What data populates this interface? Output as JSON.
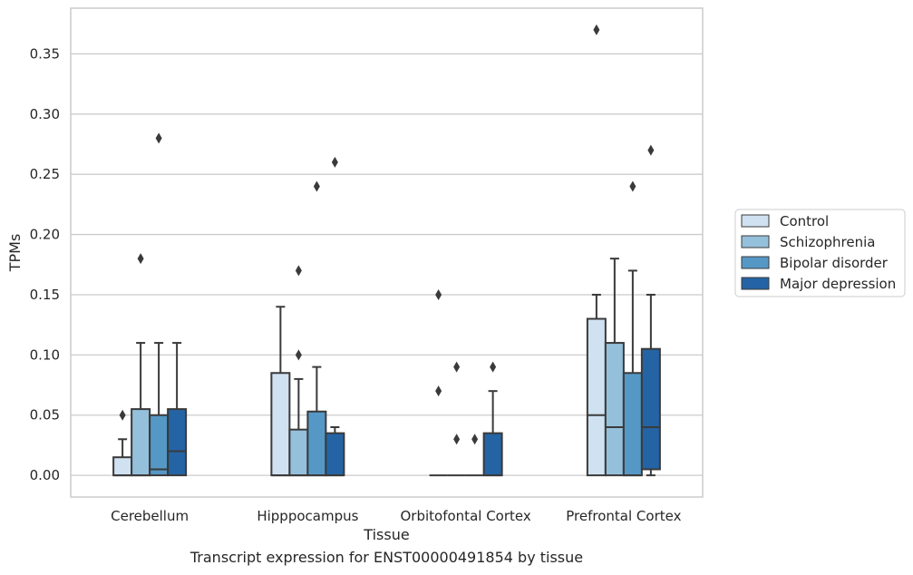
{
  "caption": "Transcript expression for ENST00000491854 by tissue",
  "chart_data": {
    "type": "box",
    "xlabel": "Tissue",
    "ylabel": "TPMs",
    "ylim": [
      -0.018,
      0.388
    ],
    "yticks": [
      0.0,
      0.05,
      0.1,
      0.15,
      0.2,
      0.25,
      0.3,
      0.35
    ],
    "ytick_labels": [
      "0.00",
      "0.05",
      "0.10",
      "0.15",
      "0.20",
      "0.25",
      "0.30",
      "0.35"
    ],
    "grid": "horizontal",
    "legend_position": "right",
    "categories": [
      "Cerebellum",
      "Hipppocampus",
      "Orbitofontal Cortex",
      "Prefrontal Cortex"
    ],
    "series": [
      {
        "name": "Control",
        "color": "#d0e1f1",
        "boxes": [
          {
            "min": 0.0,
            "q1": 0.0,
            "median": 0.0,
            "q3": 0.015,
            "max": 0.03,
            "outliers": [
              0.05
            ]
          },
          {
            "min": 0.0,
            "q1": 0.0,
            "median": 0.0,
            "q3": 0.085,
            "max": 0.14,
            "outliers": []
          },
          {
            "min": 0.0,
            "q1": 0.0,
            "median": 0.0,
            "q3": 0.0,
            "max": 0.0,
            "outliers": [
              0.07,
              0.15
            ]
          },
          {
            "min": 0.0,
            "q1": 0.0,
            "median": 0.05,
            "q3": 0.13,
            "max": 0.15,
            "outliers": [
              0.37
            ]
          }
        ]
      },
      {
        "name": "Schizophrenia",
        "color": "#95c0dc",
        "boxes": [
          {
            "min": 0.0,
            "q1": 0.0,
            "median": 0.0,
            "q3": 0.055,
            "max": 0.11,
            "outliers": [
              0.18
            ]
          },
          {
            "min": 0.0,
            "q1": 0.0,
            "median": 0.0,
            "q3": 0.038,
            "max": 0.08,
            "outliers": [
              0.1,
              0.17
            ]
          },
          {
            "min": 0.0,
            "q1": 0.0,
            "median": 0.0,
            "q3": 0.0,
            "max": 0.0,
            "outliers": [
              0.03,
              0.09
            ]
          },
          {
            "min": 0.0,
            "q1": 0.0,
            "median": 0.04,
            "q3": 0.11,
            "max": 0.18,
            "outliers": []
          }
        ]
      },
      {
        "name": "Bipolar disorder",
        "color": "#5598c6",
        "boxes": [
          {
            "min": 0.0,
            "q1": 0.0,
            "median": 0.005,
            "q3": 0.05,
            "max": 0.11,
            "outliers": [
              0.28
            ]
          },
          {
            "min": 0.0,
            "q1": 0.0,
            "median": 0.0,
            "q3": 0.053,
            "max": 0.09,
            "outliers": [
              0.24
            ]
          },
          {
            "min": 0.0,
            "q1": 0.0,
            "median": 0.0,
            "q3": 0.0,
            "max": 0.0,
            "outliers": [
              0.03
            ]
          },
          {
            "min": 0.0,
            "q1": 0.0,
            "median": 0.0,
            "q3": 0.085,
            "max": 0.17,
            "outliers": [
              0.24
            ]
          }
        ]
      },
      {
        "name": "Major depression",
        "color": "#2464a4",
        "boxes": [
          {
            "min": 0.0,
            "q1": 0.0,
            "median": 0.02,
            "q3": 0.055,
            "max": 0.11,
            "outliers": []
          },
          {
            "min": 0.0,
            "q1": 0.0,
            "median": 0.0,
            "q3": 0.035,
            "max": 0.04,
            "outliers": [
              0.26
            ]
          },
          {
            "min": 0.0,
            "q1": 0.0,
            "median": 0.0,
            "q3": 0.035,
            "max": 0.07,
            "outliers": [
              0.09
            ]
          },
          {
            "min": 0.0,
            "q1": 0.005,
            "median": 0.04,
            "q3": 0.105,
            "max": 0.15,
            "outliers": [
              0.27
            ]
          }
        ]
      }
    ]
  }
}
